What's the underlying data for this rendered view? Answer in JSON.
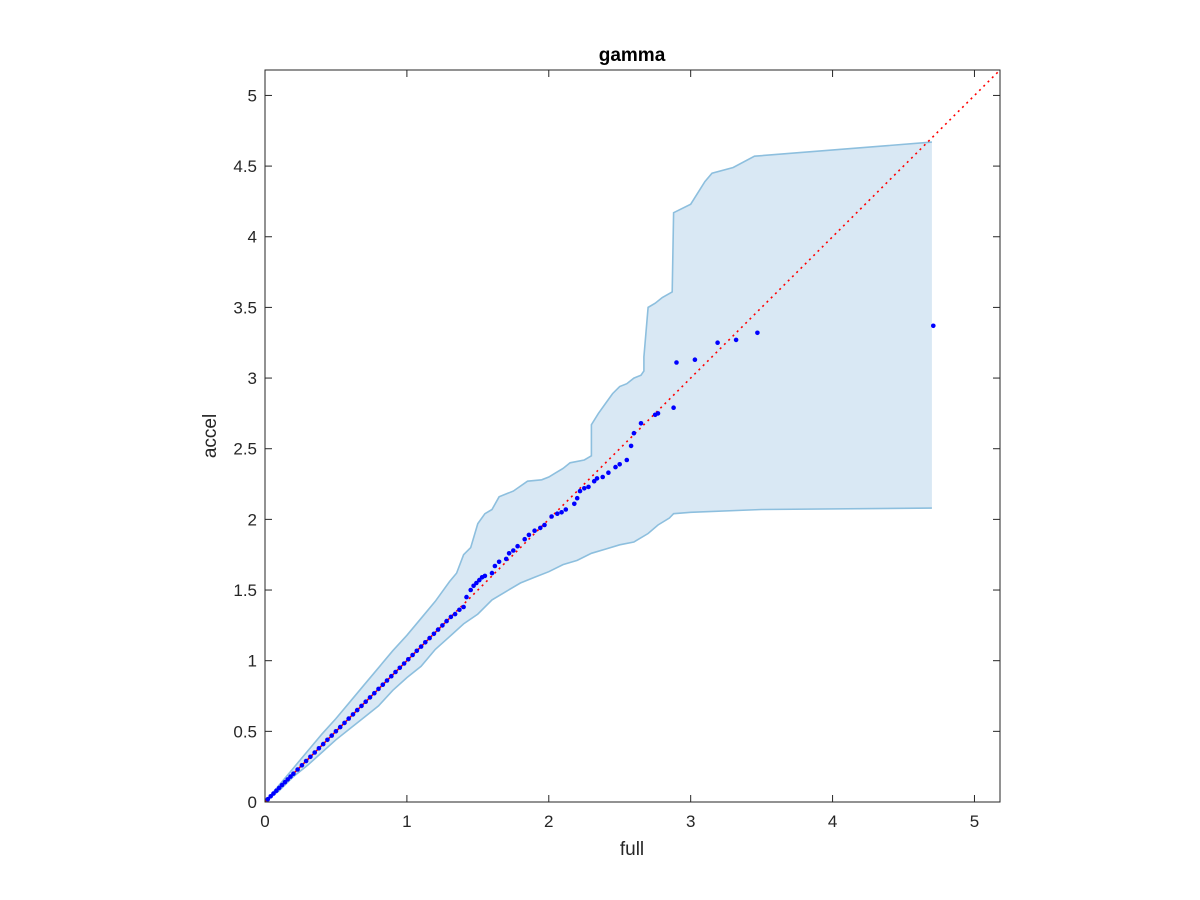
{
  "chart_data": {
    "type": "scatter",
    "title": "gamma",
    "xlabel": "full",
    "ylabel": "accel",
    "xlim": [
      0,
      5.18
    ],
    "ylim": [
      0,
      5.18
    ],
    "xticks": [
      0,
      1,
      2,
      3,
      4,
      5
    ],
    "xtick_labels": [
      "0",
      "1",
      "2",
      "3",
      "4",
      "5"
    ],
    "yticks": [
      0,
      0.5,
      1,
      1.5,
      2,
      2.5,
      3,
      3.5,
      4,
      4.5,
      5
    ],
    "ytick_labels": [
      "0",
      "0.5",
      "1",
      "1.5",
      "2",
      "2.5",
      "3",
      "3.5",
      "4",
      "4.5",
      "5"
    ],
    "grid": false,
    "colors": {
      "points": "#0000ff",
      "reference_line": "#ff0000",
      "band_fill": "#d9e8f4",
      "band_edge": "#8dbfde",
      "axes": "#262626"
    },
    "reference_line": {
      "style": "dotted",
      "x": [
        0,
        5.18
      ],
      "y": [
        0,
        5.18
      ]
    },
    "band": {
      "upper": [
        [
          0,
          0
        ],
        [
          0.1,
          0.12
        ],
        [
          0.2,
          0.24
        ],
        [
          0.3,
          0.36
        ],
        [
          0.4,
          0.48
        ],
        [
          0.5,
          0.59
        ],
        [
          0.6,
          0.71
        ],
        [
          0.7,
          0.83
        ],
        [
          0.8,
          0.95
        ],
        [
          0.9,
          1.07
        ],
        [
          1.0,
          1.18
        ],
        [
          1.1,
          1.3
        ],
        [
          1.2,
          1.42
        ],
        [
          1.3,
          1.56
        ],
        [
          1.35,
          1.62
        ],
        [
          1.4,
          1.75
        ],
        [
          1.45,
          1.8
        ],
        [
          1.5,
          1.97
        ],
        [
          1.55,
          2.04
        ],
        [
          1.6,
          2.07
        ],
        [
          1.65,
          2.16
        ],
        [
          1.7,
          2.18
        ],
        [
          1.75,
          2.2
        ],
        [
          1.85,
          2.27
        ],
        [
          1.95,
          2.28
        ],
        [
          2.0,
          2.3
        ],
        [
          2.05,
          2.33
        ],
        [
          2.1,
          2.36
        ],
        [
          2.15,
          2.4
        ],
        [
          2.25,
          2.42
        ],
        [
          2.3,
          2.45
        ],
        [
          2.3,
          2.67
        ],
        [
          2.35,
          2.75
        ],
        [
          2.4,
          2.82
        ],
        [
          2.45,
          2.89
        ],
        [
          2.5,
          2.94
        ],
        [
          2.55,
          2.96
        ],
        [
          2.6,
          3.0
        ],
        [
          2.65,
          3.02
        ],
        [
          2.67,
          3.05
        ],
        [
          2.67,
          3.15
        ],
        [
          2.7,
          3.5
        ],
        [
          2.75,
          3.53
        ],
        [
          2.8,
          3.57
        ],
        [
          2.87,
          3.61
        ],
        [
          2.88,
          4.17
        ],
        [
          3.0,
          4.23
        ],
        [
          3.1,
          4.39
        ],
        [
          3.15,
          4.45
        ],
        [
          3.3,
          4.49
        ],
        [
          3.45,
          4.57
        ],
        [
          4.7,
          4.67
        ]
      ],
      "lower": [
        [
          0,
          0
        ],
        [
          0.1,
          0.08
        ],
        [
          0.2,
          0.18
        ],
        [
          0.3,
          0.26
        ],
        [
          0.4,
          0.35
        ],
        [
          0.5,
          0.44
        ],
        [
          0.6,
          0.52
        ],
        [
          0.7,
          0.6
        ],
        [
          0.8,
          0.68
        ],
        [
          0.9,
          0.79
        ],
        [
          1.0,
          0.88
        ],
        [
          1.1,
          0.96
        ],
        [
          1.2,
          1.08
        ],
        [
          1.3,
          1.17
        ],
        [
          1.4,
          1.26
        ],
        [
          1.5,
          1.33
        ],
        [
          1.6,
          1.43
        ],
        [
          1.7,
          1.49
        ],
        [
          1.8,
          1.55
        ],
        [
          1.9,
          1.59
        ],
        [
          2.0,
          1.63
        ],
        [
          2.1,
          1.68
        ],
        [
          2.2,
          1.71
        ],
        [
          2.3,
          1.76
        ],
        [
          2.4,
          1.79
        ],
        [
          2.5,
          1.82
        ],
        [
          2.6,
          1.84
        ],
        [
          2.7,
          1.9
        ],
        [
          2.77,
          1.96
        ],
        [
          2.85,
          2.01
        ],
        [
          2.88,
          2.04
        ],
        [
          3.0,
          2.05
        ],
        [
          3.5,
          2.07
        ],
        [
          4.7,
          2.08
        ]
      ]
    },
    "x": [
      0.02,
      0.04,
      0.06,
      0.08,
      0.1,
      0.12,
      0.14,
      0.16,
      0.18,
      0.2,
      0.23,
      0.26,
      0.29,
      0.32,
      0.35,
      0.38,
      0.41,
      0.44,
      0.47,
      0.5,
      0.53,
      0.56,
      0.59,
      0.62,
      0.65,
      0.68,
      0.71,
      0.74,
      0.77,
      0.8,
      0.83,
      0.86,
      0.89,
      0.92,
      0.95,
      0.98,
      1.01,
      1.04,
      1.07,
      1.1,
      1.13,
      1.16,
      1.19,
      1.22,
      1.25,
      1.28,
      1.31,
      1.34,
      1.37,
      1.4,
      1.42,
      1.45,
      1.47,
      1.49,
      1.51,
      1.53,
      1.55,
      1.6,
      1.62,
      1.65,
      1.7,
      1.72,
      1.75,
      1.78,
      1.83,
      1.86,
      1.9,
      1.94,
      1.97,
      2.02,
      2.06,
      2.09,
      2.12,
      2.18,
      2.2,
      2.22,
      2.25,
      2.28,
      2.32,
      2.34,
      2.38,
      2.42,
      2.47,
      2.5,
      2.55,
      2.58,
      2.6,
      2.65,
      2.75,
      2.77,
      2.88,
      2.9,
      3.03,
      3.19,
      3.32,
      3.47,
      4.71
    ],
    "y": [
      0.02,
      0.04,
      0.06,
      0.08,
      0.1,
      0.12,
      0.14,
      0.16,
      0.18,
      0.2,
      0.23,
      0.26,
      0.29,
      0.32,
      0.35,
      0.38,
      0.41,
      0.44,
      0.47,
      0.5,
      0.53,
      0.56,
      0.59,
      0.62,
      0.65,
      0.68,
      0.71,
      0.74,
      0.77,
      0.8,
      0.83,
      0.86,
      0.89,
      0.92,
      0.95,
      0.98,
      1.01,
      1.04,
      1.07,
      1.1,
      1.13,
      1.16,
      1.19,
      1.22,
      1.25,
      1.28,
      1.31,
      1.33,
      1.36,
      1.38,
      1.45,
      1.5,
      1.53,
      1.55,
      1.57,
      1.59,
      1.6,
      1.62,
      1.67,
      1.7,
      1.72,
      1.76,
      1.78,
      1.81,
      1.86,
      1.89,
      1.92,
      1.94,
      1.96,
      2.02,
      2.04,
      2.05,
      2.07,
      2.11,
      2.15,
      2.2,
      2.22,
      2.23,
      2.27,
      2.29,
      2.3,
      2.33,
      2.37,
      2.39,
      2.42,
      2.52,
      2.61,
      2.68,
      2.74,
      2.75,
      2.79,
      3.11,
      3.13,
      3.25,
      3.27,
      3.32,
      3.37
    ]
  }
}
